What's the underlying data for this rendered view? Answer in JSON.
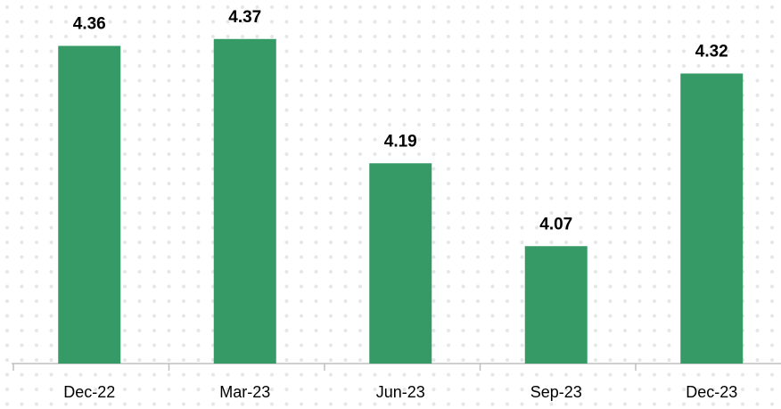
{
  "chart_data": {
    "type": "bar",
    "categories": [
      "Dec-22",
      "Mar-23",
      "Jun-23",
      "Sep-23",
      "Dec-23"
    ],
    "values": [
      4.36,
      4.37,
      4.19,
      4.07,
      4.32
    ],
    "color": "#359a65",
    "ylim": [
      3.9,
      4.4
    ]
  }
}
